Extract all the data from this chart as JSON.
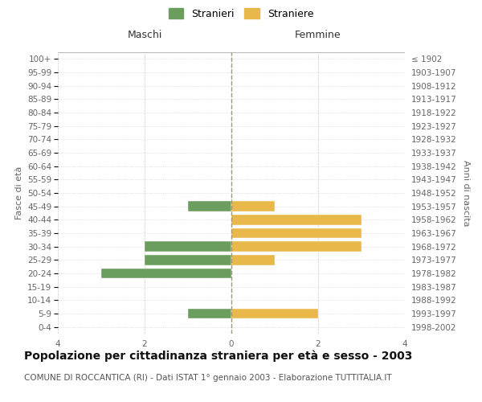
{
  "age_groups": [
    "100+",
    "95-99",
    "90-94",
    "85-89",
    "80-84",
    "75-79",
    "70-74",
    "65-69",
    "60-64",
    "55-59",
    "50-54",
    "45-49",
    "40-44",
    "35-39",
    "30-34",
    "25-29",
    "20-24",
    "15-19",
    "10-14",
    "5-9",
    "0-4"
  ],
  "birth_years": [
    "≤ 1902",
    "1903-1907",
    "1908-1912",
    "1913-1917",
    "1918-1922",
    "1923-1927",
    "1928-1932",
    "1933-1937",
    "1938-1942",
    "1943-1947",
    "1948-1952",
    "1953-1957",
    "1958-1962",
    "1963-1967",
    "1968-1972",
    "1973-1977",
    "1978-1982",
    "1983-1987",
    "1988-1992",
    "1993-1997",
    "1998-2002"
  ],
  "maschi": [
    0,
    0,
    0,
    0,
    0,
    0,
    0,
    0,
    0,
    0,
    0,
    -1,
    0,
    0,
    -2,
    -2,
    -3,
    0,
    0,
    -1,
    0
  ],
  "femmine": [
    0,
    0,
    0,
    0,
    0,
    0,
    0,
    0,
    0,
    0,
    0,
    1,
    3,
    3,
    3,
    1,
    0,
    0,
    0,
    2,
    0
  ],
  "male_color": "#6b9e5e",
  "female_color": "#e8b84b",
  "xlim": [
    -4,
    4
  ],
  "xlabel_ticks": [
    -4,
    -2,
    0,
    2,
    4
  ],
  "title": "Popolazione per cittadinanza straniera per età e sesso - 2003",
  "subtitle": "COMUNE DI ROCCANTICA (RI) - Dati ISTAT 1° gennaio 2003 - Elaborazione TUTTITALIA.IT",
  "ylabel_left": "Fasce di età",
  "ylabel_right": "Anni di nascita",
  "legend_male": "Stranieri",
  "legend_female": "Straniere",
  "maschi_header": "Maschi",
  "femmine_header": "Femmine",
  "bg_color": "#ffffff",
  "grid_color": "#cccccc",
  "bar_height": 0.75,
  "title_fontsize": 10,
  "subtitle_fontsize": 7.5,
  "tick_fontsize": 7.5
}
